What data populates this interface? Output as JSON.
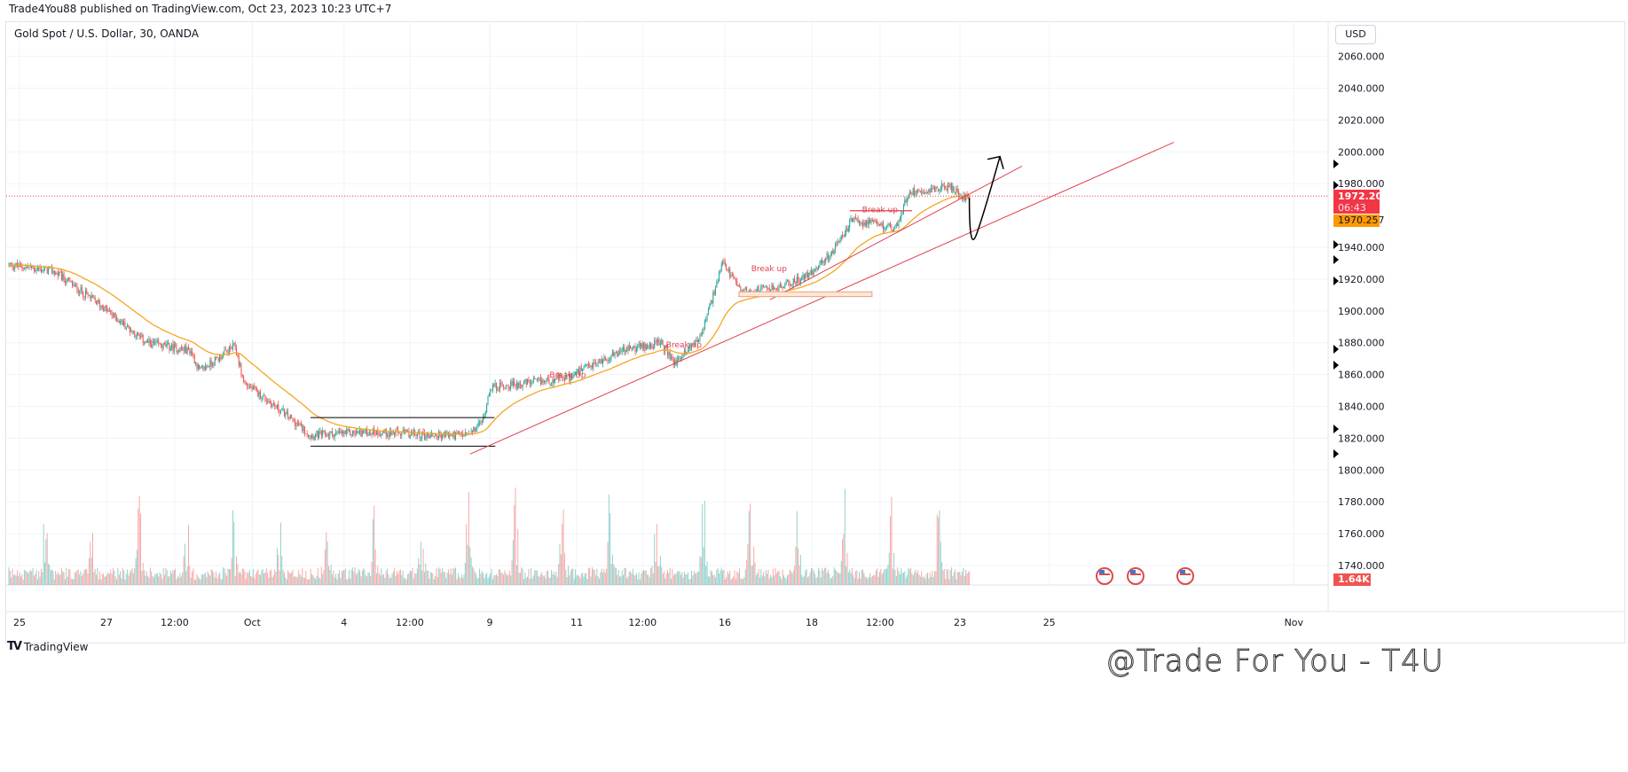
{
  "header": {
    "published": "Trade4You88 published on TradingView.com, Oct 23, 2023 10:23 UTC+7",
    "symbol": "Gold Spot / U.S. Dollar, 30, OANDA",
    "currency_button": "USD"
  },
  "footer": {
    "logo_text": "TradingView",
    "watermark": "@Trade For You - T4U"
  },
  "colors": {
    "up": "#26a69a",
    "down": "#ef5350",
    "ma": "#f5a623",
    "trend": "#e0424f",
    "last_price": "#f23645",
    "ma_label": "#ff9800"
  },
  "chart_data": {
    "type": "candlestick",
    "title": "Gold Spot / U.S. Dollar, 30, OANDA",
    "ylim": [
      1730,
      2070
    ],
    "y_ticks": [
      2060,
      2040,
      2020,
      2000,
      1980,
      1940,
      1920,
      1900,
      1880,
      1860,
      1840,
      1820,
      1800,
      1780,
      1760,
      1740
    ],
    "y_tick_labels": [
      "2060.000",
      "2040.000",
      "2020.000",
      "2000.000",
      "1980.000",
      "1940.000",
      "1920.000",
      "1900.000",
      "1880.000",
      "1860.000",
      "1840.000",
      "1820.000",
      "1800.000",
      "1780.000",
      "1760.000",
      "1740.000"
    ],
    "x_ticks": [
      {
        "d": 0,
        "label": "25"
      },
      {
        "d": 1.85,
        "label": "27"
      },
      {
        "d": 3.3,
        "label": "12:00"
      },
      {
        "d": 4.95,
        "label": "Oct"
      },
      {
        "d": 6.9,
        "label": "4"
      },
      {
        "d": 8.3,
        "label": "12:00"
      },
      {
        "d": 10,
        "label": "9"
      },
      {
        "d": 11.85,
        "label": "11"
      },
      {
        "d": 13.25,
        "label": "12:00"
      },
      {
        "d": 15,
        "label": "16"
      },
      {
        "d": 16.85,
        "label": "18"
      },
      {
        "d": 18.3,
        "label": "12:00"
      },
      {
        "d": 20,
        "label": "23"
      },
      {
        "d": 21.9,
        "label": "25"
      },
      {
        "d": 27.1,
        "label": "Nov"
      }
    ],
    "close_path": [
      [
        -0.23,
        1929
      ],
      [
        0.72,
        1925
      ],
      [
        1.66,
        1905
      ],
      [
        2.7,
        1880
      ],
      [
        3.64,
        1875
      ],
      [
        3.83,
        1862
      ],
      [
        4.58,
        1878
      ],
      [
        4.77,
        1855
      ],
      [
        5.62,
        1836
      ],
      [
        6.19,
        1822
      ],
      [
        7.5,
        1824
      ],
      [
        8.64,
        1822
      ],
      [
        9.58,
        1822
      ],
      [
        9.87,
        1832
      ],
      [
        10,
        1852
      ],
      [
        10.9,
        1855
      ],
      [
        11.66,
        1858
      ],
      [
        12.8,
        1875
      ],
      [
        13.64,
        1880
      ],
      [
        13.93,
        1867
      ],
      [
        14.5,
        1885
      ],
      [
        14.96,
        1930
      ],
      [
        15.34,
        1912
      ],
      [
        16.19,
        1915
      ],
      [
        16.75,
        1922
      ],
      [
        17.32,
        1938
      ],
      [
        17.7,
        1957
      ],
      [
        18.64,
        1952
      ],
      [
        18.92,
        1975
      ],
      [
        19.77,
        1978
      ],
      [
        20.05,
        1972
      ],
      [
        20.2,
        1972
      ]
    ],
    "moving_average": {
      "type": "EMA",
      "period": 50
    },
    "last_price": "1972.205",
    "countdown": "06:43",
    "ma_value": "1970.257",
    "volume_last": "1.64K",
    "annotations": [
      {
        "type": "text",
        "text": "Break Up",
        "d": 11.66,
        "price": 1858
      },
      {
        "type": "text",
        "text": "Break up",
        "d": 14.13,
        "price": 1877
      },
      {
        "type": "text",
        "text": "Break up",
        "d": 15.94,
        "price": 1925
      },
      {
        "type": "text",
        "text": "Break up",
        "d": 18.3,
        "price": 1962
      },
      {
        "type": "range_box",
        "d1": 6.19,
        "d2": 10.1,
        "p1": 1815,
        "p2": 1833
      },
      {
        "type": "trendline",
        "d1": 9.58,
        "p1": 1810,
        "d2": 24.55,
        "p2": 2006
      },
      {
        "type": "trendline",
        "d1": 15.96,
        "p1": 1907,
        "d2": 21.32,
        "p2": 1991
      },
      {
        "type": "zone",
        "d1": 15.3,
        "d2": 18.13,
        "p1": 1909,
        "p2": 1912
      },
      {
        "type": "level",
        "d1": 17.66,
        "d2": 18.98,
        "p": 1963
      },
      {
        "type": "projection",
        "points": [
          [
            20.2,
            1971
          ],
          [
            20.35,
            1948
          ],
          [
            20.85,
            1997
          ]
        ]
      }
    ]
  }
}
